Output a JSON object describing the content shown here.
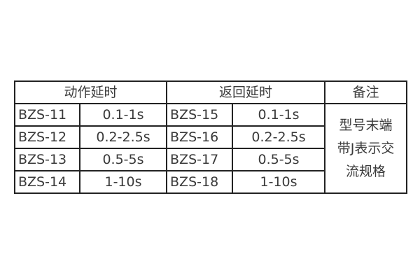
{
  "table": {
    "headers": [
      "动作延时",
      "返回延时",
      "备注"
    ],
    "rows": [
      {
        "action_model": "BZS-11",
        "action_delay": "0.1-1s",
        "return_model": "BZS-15",
        "return_delay": "0.1-1s"
      },
      {
        "action_model": "BZS-12",
        "action_delay": "0.2-2.5s",
        "return_model": "BZS-16",
        "return_delay": "0.2-2.5s"
      },
      {
        "action_model": "BZS-13",
        "action_delay": "0.5-5s",
        "return_model": "BZS-17",
        "return_delay": "0.5-5s"
      },
      {
        "action_model": "BZS-14",
        "action_delay": "1-10s",
        "return_model": "BZS-18",
        "return_delay": "1-10s"
      }
    ],
    "note_lines": [
      "型号末端",
      "带J表示交",
      "流规格"
    ]
  }
}
